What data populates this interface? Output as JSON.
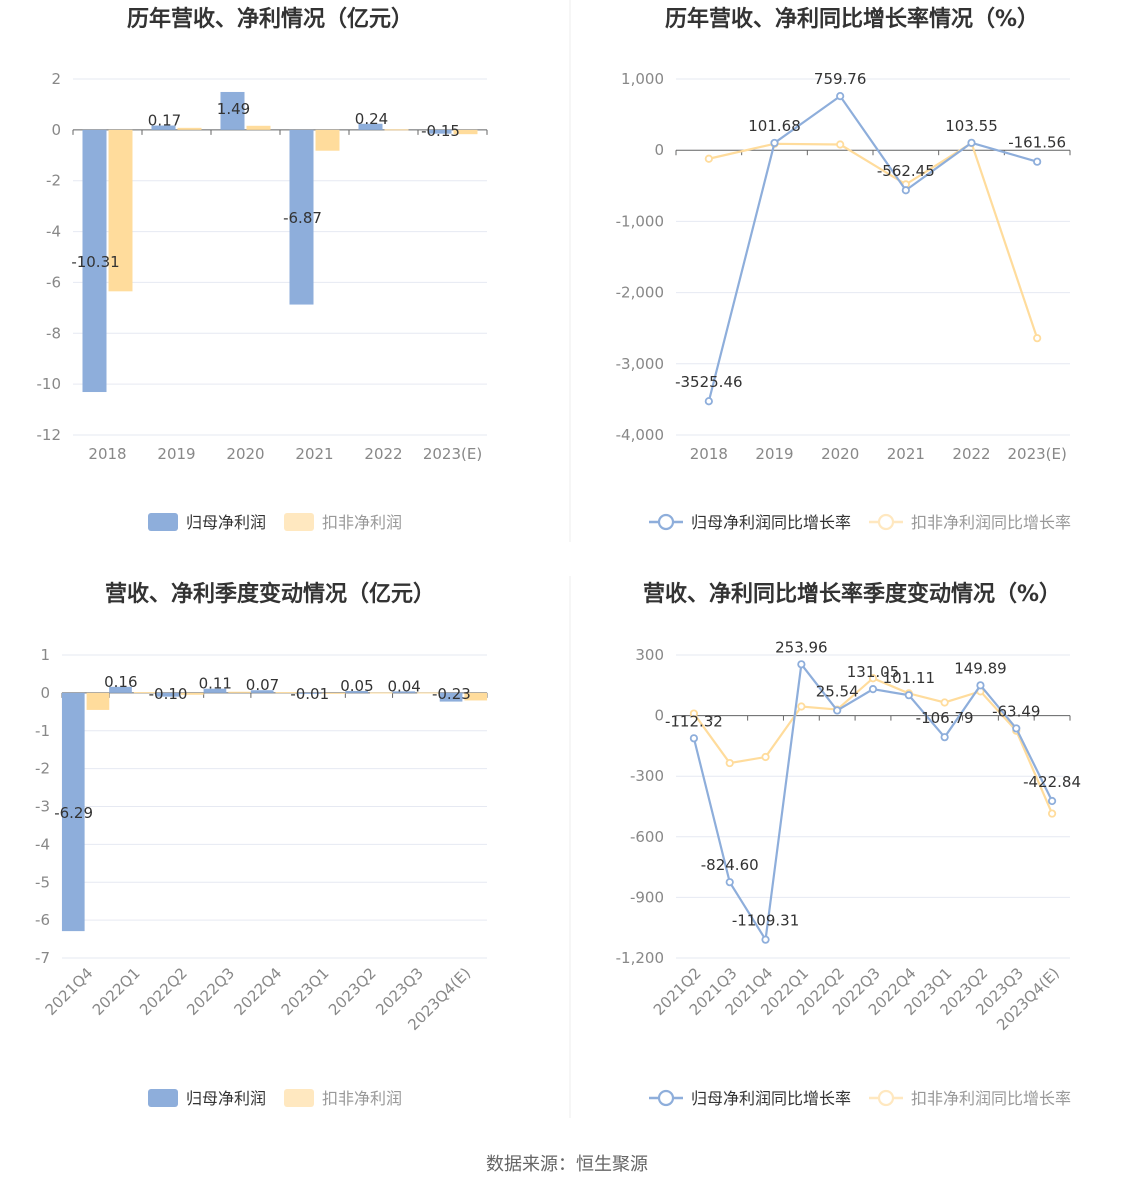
{
  "source_note": "数据来源：恒生聚源",
  "colors": {
    "primary": "#8eaedb",
    "secondary": "#ffdc9c",
    "secondary_light": "#ffe8c0",
    "text": "#333333",
    "axis": "#888888",
    "grid": "#e6e9f2"
  },
  "chart_data": [
    {
      "type": "bar",
      "title": "历年营收、净利情况（亿元）",
      "categories": [
        "2018",
        "2019",
        "2020",
        "2021",
        "2022",
        "2023(E)"
      ],
      "series": [
        {
          "name": "归母净利润",
          "values": [
            -10.31,
            0.17,
            1.49,
            -6.87,
            0.24,
            -0.15
          ],
          "labels": [
            "-10.31",
            "0.17",
            "1.49",
            "-6.87",
            "0.24",
            "-0.15"
          ]
        },
        {
          "name": "扣非净利润",
          "values": [
            -6.35,
            0.08,
            0.16,
            -0.82,
            0.02,
            -0.17
          ]
        }
      ],
      "y_ticks": [
        "2",
        "0",
        "-2",
        "-4",
        "-6",
        "-8",
        "-10",
        "-12"
      ],
      "ylim": [
        -12,
        2
      ],
      "legend": "bottom"
    },
    {
      "type": "line",
      "title": "历年营收、净利同比增长率情况（%）",
      "categories": [
        "2018",
        "2019",
        "2020",
        "2021",
        "2022",
        "2023(E)"
      ],
      "series": [
        {
          "name": "归母净利润同比增长率",
          "values": [
            -3525.46,
            101.68,
            759.76,
            -562.45,
            103.55,
            -161.56
          ],
          "labels": [
            "-3525.46",
            "101.68",
            "759.76",
            "-562.45",
            "103.55",
            "-161.56"
          ]
        },
        {
          "name": "扣非净利润同比增长率",
          "values": [
            -120,
            90,
            80,
            -480,
            100,
            -2640
          ]
        }
      ],
      "y_ticks": [
        "1,000",
        "0",
        "-1,000",
        "-2,000",
        "-3,000",
        "-4,000"
      ],
      "ylim": [
        -4000,
        1000
      ],
      "legend": "bottom"
    },
    {
      "type": "bar",
      "title": "营收、净利季度变动情况（亿元）",
      "categories": [
        "2021Q4",
        "2022Q1",
        "2022Q2",
        "2022Q3",
        "2022Q4",
        "2023Q1",
        "2023Q2",
        "2023Q3",
        "2023Q4(E)"
      ],
      "series": [
        {
          "name": "归母净利润",
          "values": [
            -6.29,
            0.16,
            -0.1,
            0.11,
            0.07,
            -0.01,
            0.05,
            0.04,
            -0.23
          ],
          "labels": [
            "-6.29",
            "0.16",
            "-0.10",
            "0.11",
            "0.07",
            "-0.01",
            "0.05",
            "0.04",
            "-0.23"
          ]
        },
        {
          "name": "扣非净利润",
          "values": [
            -0.45,
            0.02,
            -0.05,
            0.03,
            0.02,
            -0.02,
            0.01,
            0.01,
            -0.2
          ]
        }
      ],
      "y_ticks": [
        "1",
        "0",
        "-1",
        "-2",
        "-3",
        "-4",
        "-5",
        "-6",
        "-7"
      ],
      "ylim": [
        -7,
        1
      ],
      "legend": "bottom"
    },
    {
      "type": "line",
      "title": "营收、净利同比增长率季度变动情况（%）",
      "categories": [
        "2021Q2",
        "2021Q3",
        "2021Q4",
        "2022Q1",
        "2022Q2",
        "2022Q3",
        "2022Q4",
        "2023Q1",
        "2023Q2",
        "2023Q3",
        "2023Q4(E)"
      ],
      "series": [
        {
          "name": "归母净利润同比增长率",
          "values": [
            -112.32,
            -824.6,
            -1109.31,
            253.96,
            25.54,
            131.05,
            101.11,
            -106.79,
            149.89,
            -63.49,
            -422.84
          ],
          "labels": [
            "-112.32",
            "-824.60",
            "-1109.31",
            "253.96",
            "25.54",
            "131.05",
            "101.11",
            "-106.79",
            "149.89",
            "-63.49",
            "-422.84"
          ]
        },
        {
          "name": "扣非净利润同比增长率",
          "values": [
            10,
            -235,
            -205,
            45,
            30,
            185,
            110,
            65,
            120,
            -75,
            -485
          ]
        }
      ],
      "y_ticks": [
        "300",
        "0",
        "-300",
        "-600",
        "-900",
        "-1,200"
      ],
      "ylim": [
        -1200,
        300
      ],
      "legend": "bottom"
    }
  ]
}
